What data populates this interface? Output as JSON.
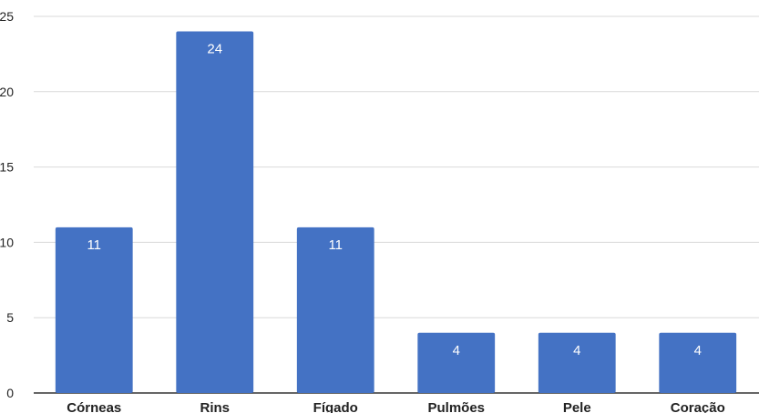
{
  "chart_data": {
    "type": "bar",
    "categories": [
      "Córneas",
      "Rins",
      "Fígado",
      "Pulmões",
      "Pele",
      "Coração"
    ],
    "values": [
      11,
      24,
      11,
      4,
      4,
      4
    ],
    "data_labels": [
      "11",
      "24",
      "11",
      "4",
      "4",
      "4"
    ],
    "title": "",
    "xlabel": "",
    "ylabel": "",
    "ylim": [
      0,
      25
    ],
    "yticks": [
      0,
      5,
      10,
      15,
      20,
      25
    ],
    "ytick_labels": [
      "0",
      "5",
      "10",
      "15",
      "20",
      "25"
    ],
    "grid": true,
    "legend": "none",
    "bar_color": "#4472c4",
    "label_color": "#ffffff",
    "grid_color": "#d9d9d9"
  }
}
